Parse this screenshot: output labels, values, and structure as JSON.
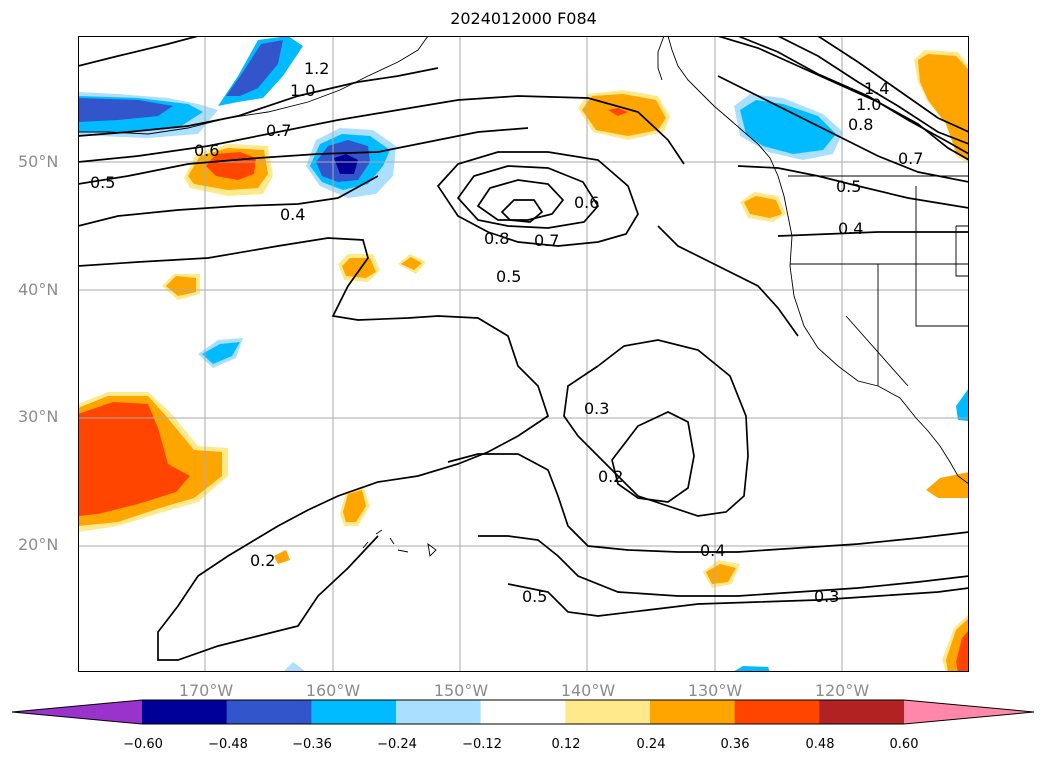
{
  "title": "2024012000 F084",
  "lat_labels": [
    "50°N",
    "40°N",
    "30°N",
    "20°N"
  ],
  "lon_labels": [
    "170°W",
    "160°W",
    "150°W",
    "140°W",
    "130°W",
    "120°W"
  ],
  "colorbar": {
    "ticks": [
      "−0.60",
      "−0.48",
      "−0.36",
      "−0.24",
      "−0.12",
      "0.12",
      "0.24",
      "0.36",
      "0.48",
      "0.60"
    ],
    "colors": [
      "#9933cc",
      "#000099",
      "#3355cc",
      "#00bbff",
      "#aadfff",
      "#ffffff",
      "#ffe98a",
      "#ffa500",
      "#ff4500",
      "#b22222",
      "#ff88aa"
    ]
  },
  "contour_labels": {
    "c12": "1.2",
    "c10": "1.0",
    "c07a": "0.7",
    "c06a": "0.6",
    "c05a": "0.5",
    "c04a": "0.4",
    "c08": "0.8",
    "c07b": "0.7",
    "c06b": "0.6",
    "c05b": "0.5",
    "c03a": "0.3",
    "c02a": "0.2",
    "c02b": "0.2",
    "c04b": "0.4",
    "c05c": "0.5",
    "c03b": "0.3",
    "c14": "1.4",
    "c10b": "1.0",
    "c08b": "0.8",
    "c07c": "0.7",
    "c05d": "0.5",
    "c04c": "0.4"
  }
}
